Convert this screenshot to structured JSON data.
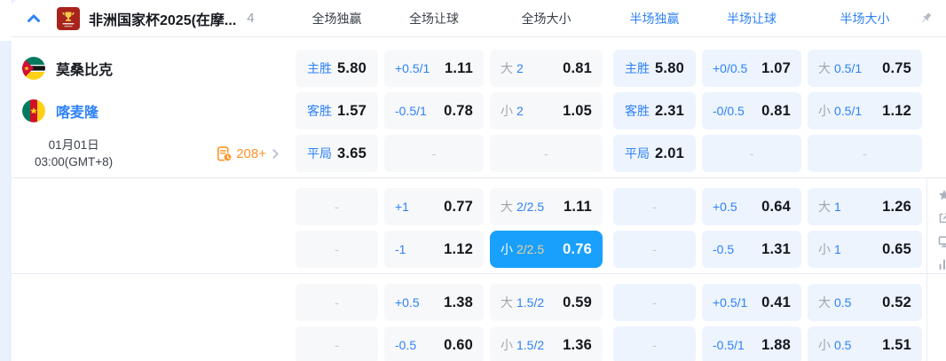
{
  "colors": {
    "accent_blue": "#2e82f6",
    "highlight_cell_bg": "#19a0fc",
    "highlight_gold_text": "#ecd29b",
    "full_cell_bg": "#f7f8fa",
    "half_cell_bg": "#edf4fe",
    "orange": "#ff9428",
    "page_bg": "#e8f1fd"
  },
  "header": {
    "league_title": "非洲国家杯2025(在摩...",
    "match_count": "4",
    "columns": {
      "full": [
        "全场独赢",
        "全场让球",
        "全场大小"
      ],
      "half": [
        "半场独赢",
        "半场让球",
        "半场大小"
      ]
    }
  },
  "match": {
    "home_team": "莫桑比克",
    "away_team": "喀麦隆",
    "date": "01月01日",
    "time": "03:00(GMT+8)",
    "more_markets": "208+"
  },
  "icons": {
    "collapse": "chevron-up-icon",
    "league_logo": "trophy-logo-icon",
    "pin": "pushpin-icon",
    "more_markets": "history-list-clock-icon",
    "more_arrow": "chevron-right-icon",
    "home_flag": "mozambique-flag-icon",
    "away_flag": "cameroon-flag-icon",
    "side": [
      "star-icon",
      "share-icon",
      "monitor-icon",
      "stats-icon"
    ]
  },
  "odds": {
    "rows": [
      {
        "cells": [
          {
            "kind": "win",
            "section": "full",
            "label": "主胜",
            "value": "5.80"
          },
          {
            "kind": "hc",
            "section": "full",
            "label": "+0.5/1",
            "value": "1.11"
          },
          {
            "kind": "ou",
            "section": "full",
            "word": "大",
            "line": "2",
            "value": "0.81"
          },
          {
            "kind": "win",
            "section": "half",
            "label": "主胜",
            "value": "5.80"
          },
          {
            "kind": "hc",
            "section": "half",
            "label": "+0/0.5",
            "value": "1.07"
          },
          {
            "kind": "ou",
            "section": "half",
            "word": "大",
            "line": "0.5/1",
            "value": "0.75"
          }
        ]
      },
      {
        "cells": [
          {
            "kind": "win",
            "section": "full",
            "label": "客胜",
            "value": "1.57"
          },
          {
            "kind": "hc",
            "section": "full",
            "label": "-0.5/1",
            "value": "0.78"
          },
          {
            "kind": "ou",
            "section": "full",
            "word": "小",
            "line": "2",
            "value": "1.05"
          },
          {
            "kind": "win",
            "section": "half",
            "label": "客胜",
            "value": "2.31"
          },
          {
            "kind": "hc",
            "section": "half",
            "label": "-0/0.5",
            "value": "0.81"
          },
          {
            "kind": "ou",
            "section": "half",
            "word": "小",
            "line": "0.5/1",
            "value": "1.12"
          }
        ]
      },
      {
        "cells": [
          {
            "kind": "win",
            "section": "full",
            "label": "平局",
            "value": "3.65"
          },
          {
            "kind": "dash",
            "section": "full",
            "label": "-"
          },
          {
            "kind": "dash",
            "section": "full",
            "label": "-"
          },
          {
            "kind": "win",
            "section": "half",
            "label": "平局",
            "value": "2.01"
          },
          {
            "kind": "dash",
            "section": "half",
            "label": "-"
          },
          {
            "kind": "dash",
            "section": "half",
            "label": "-"
          }
        ]
      },
      {
        "cells": [
          {
            "kind": "dash",
            "section": "full",
            "label": "-"
          },
          {
            "kind": "hc",
            "section": "full",
            "label": "+1",
            "value": "0.77"
          },
          {
            "kind": "ou",
            "section": "full",
            "word": "大",
            "line": "2/2.5",
            "value": "1.11"
          },
          {
            "kind": "dash",
            "section": "half",
            "label": "-"
          },
          {
            "kind": "hc",
            "section": "half",
            "label": "+0.5",
            "value": "0.64"
          },
          {
            "kind": "ou",
            "section": "half",
            "word": "大",
            "line": "1",
            "value": "1.26"
          }
        ]
      },
      {
        "cells": [
          {
            "kind": "dash",
            "section": "full",
            "label": "-"
          },
          {
            "kind": "hc",
            "section": "full",
            "label": "-1",
            "value": "1.12"
          },
          {
            "kind": "ou",
            "section": "full",
            "word": "小",
            "line": "2/2.5",
            "value": "0.76",
            "highlight": true
          },
          {
            "kind": "dash",
            "section": "half",
            "label": "-"
          },
          {
            "kind": "hc",
            "section": "half",
            "label": "-0.5",
            "value": "1.31"
          },
          {
            "kind": "ou",
            "section": "half",
            "word": "小",
            "line": "1",
            "value": "0.65"
          }
        ]
      },
      {
        "cells": [
          {
            "kind": "dash",
            "section": "full",
            "label": "-"
          },
          {
            "kind": "hc",
            "section": "full",
            "label": "+0.5",
            "value": "1.38"
          },
          {
            "kind": "ou",
            "section": "full",
            "word": "大",
            "line": "1.5/2",
            "value": "0.59"
          },
          {
            "kind": "dash",
            "section": "half",
            "label": "-"
          },
          {
            "kind": "hc",
            "section": "half",
            "label": "+0.5/1",
            "value": "0.41"
          },
          {
            "kind": "ou",
            "section": "half",
            "word": "大",
            "line": "0.5",
            "value": "0.52"
          }
        ]
      },
      {
        "cells": [
          {
            "kind": "dash",
            "section": "full",
            "label": "-"
          },
          {
            "kind": "hc",
            "section": "full",
            "label": "-0.5",
            "value": "0.60"
          },
          {
            "kind": "ou",
            "section": "full",
            "word": "小",
            "line": "1.5/2",
            "value": "1.36"
          },
          {
            "kind": "dash",
            "section": "half",
            "label": "-"
          },
          {
            "kind": "hc",
            "section": "half",
            "label": "-0.5/1",
            "value": "1.88"
          },
          {
            "kind": "ou",
            "section": "half",
            "word": "小",
            "line": "0.5",
            "value": "1.51"
          }
        ]
      }
    ]
  }
}
